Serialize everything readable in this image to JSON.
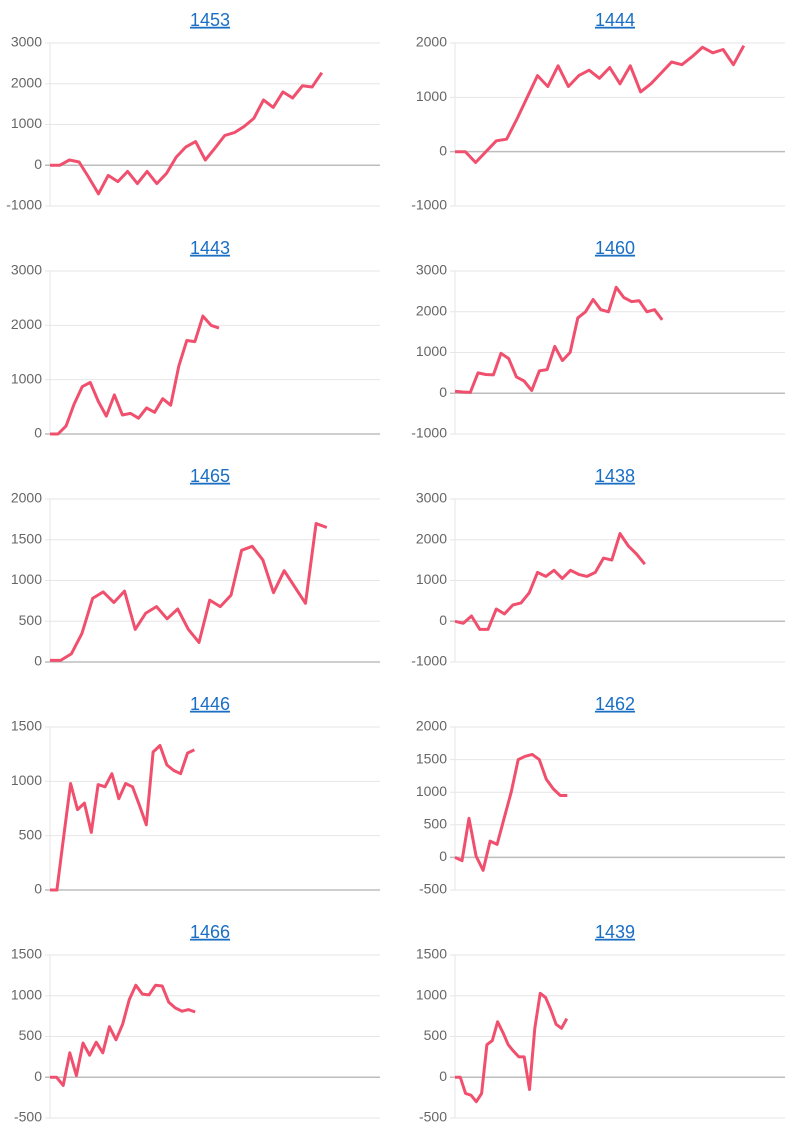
{
  "chart_data": [
    {
      "type": "line",
      "title": "1453",
      "color": "#f0506e",
      "grid": true,
      "xlim": [
        0,
        34
      ],
      "ylim": [
        -1000,
        3000
      ],
      "yticks": [
        -1000,
        0,
        1000,
        2000,
        3000
      ],
      "values": [
        0,
        0,
        130,
        80,
        -300,
        -700,
        -250,
        -400,
        -150,
        -450,
        -150,
        -450,
        -200,
        200,
        450,
        580,
        130,
        420,
        730,
        800,
        950,
        1150,
        1600,
        1420,
        1800,
        1650,
        1950,
        1920,
        2270
      ]
    },
    {
      "type": "line",
      "title": "1444",
      "color": "#f0506e",
      "grid": true,
      "xlim": [
        0,
        32
      ],
      "ylim": [
        -1000,
        2000
      ],
      "yticks": [
        -1000,
        0,
        1000,
        2000
      ],
      "values": [
        0,
        0,
        -200,
        0,
        200,
        230,
        600,
        1000,
        1400,
        1200,
        1580,
        1200,
        1400,
        1500,
        1350,
        1550,
        1250,
        1580,
        1100,
        1250,
        1450,
        1650,
        1600,
        1750,
        1920,
        1820,
        1880,
        1600,
        1950
      ]
    },
    {
      "type": "line",
      "title": "1443",
      "color": "#f0506e",
      "grid": true,
      "xlim": [
        0,
        41
      ],
      "ylim": [
        0,
        3000
      ],
      "yticks": [
        0,
        1000,
        2000,
        3000
      ],
      "values": [
        0,
        0,
        150,
        550,
        870,
        950,
        600,
        330,
        720,
        350,
        380,
        290,
        480,
        400,
        650,
        530,
        1250,
        1720,
        1700,
        2170,
        2000,
        1950
      ]
    },
    {
      "type": "line",
      "title": "1460",
      "color": "#f0506e",
      "grid": true,
      "xlim": [
        0,
        43
      ],
      "ylim": [
        -1000,
        3000
      ],
      "yticks": [
        -1000,
        0,
        1000,
        2000,
        3000
      ],
      "values": [
        50,
        30,
        20,
        500,
        460,
        450,
        980,
        850,
        400,
        300,
        70,
        550,
        580,
        1150,
        800,
        1000,
        1850,
        2000,
        2300,
        2050,
        2000,
        2600,
        2350,
        2250,
        2270,
        2000,
        2050,
        1800
      ]
    },
    {
      "type": "line",
      "title": "1465",
      "color": "#f0506e",
      "grid": true,
      "xlim": [
        0,
        31
      ],
      "ylim": [
        0,
        2000
      ],
      "yticks": [
        0,
        500,
        1000,
        1500,
        2000
      ],
      "values": [
        20,
        20,
        100,
        350,
        780,
        860,
        730,
        870,
        400,
        600,
        680,
        530,
        650,
        400,
        240,
        760,
        680,
        820,
        1370,
        1420,
        1250,
        850,
        1120,
        920,
        720,
        1700,
        1650
      ]
    },
    {
      "type": "line",
      "title": "1438",
      "color": "#f0506e",
      "grid": true,
      "xlim": [
        0,
        40
      ],
      "ylim": [
        -1000,
        3000
      ],
      "yticks": [
        -1000,
        0,
        1000,
        2000,
        3000
      ],
      "values": [
        0,
        -50,
        130,
        -200,
        -200,
        300,
        180,
        400,
        450,
        700,
        1200,
        1100,
        1250,
        1050,
        1250,
        1150,
        1100,
        1200,
        1550,
        1500,
        2150,
        1850,
        1650,
        1400
      ]
    },
    {
      "type": "line",
      "title": "1446",
      "color": "#f0506e",
      "grid": true,
      "xlim": [
        0,
        48
      ],
      "ylim": [
        0,
        1500
      ],
      "yticks": [
        0,
        500,
        1000,
        1500
      ],
      "values": [
        0,
        0,
        500,
        980,
        740,
        800,
        530,
        970,
        950,
        1070,
        840,
        980,
        950,
        780,
        600,
        1270,
        1330,
        1150,
        1100,
        1070,
        1260,
        1290
      ]
    },
    {
      "type": "line",
      "title": "1462",
      "color": "#f0506e",
      "grid": true,
      "xlim": [
        0,
        47
      ],
      "ylim": [
        -500,
        2000
      ],
      "yticks": [
        -500,
        0,
        500,
        1000,
        1500,
        2000
      ],
      "values": [
        0,
        -50,
        600,
        20,
        -200,
        250,
        200,
        600,
        1000,
        1500,
        1550,
        1580,
        1500,
        1200,
        1050,
        950,
        950
      ]
    },
    {
      "type": "line",
      "title": "1466",
      "color": "#f0506e",
      "grid": true,
      "xlim": [
        0,
        50
      ],
      "ylim": [
        -500,
        1500
      ],
      "yticks": [
        -500,
        0,
        500,
        1000,
        1500
      ],
      "values": [
        0,
        0,
        -100,
        300,
        20,
        420,
        270,
        430,
        300,
        620,
        460,
        650,
        950,
        1130,
        1020,
        1010,
        1130,
        1120,
        920,
        850,
        810,
        830,
        800
      ]
    },
    {
      "type": "line",
      "title": "1439",
      "color": "#f0506e",
      "grid": true,
      "xlim": [
        0,
        62
      ],
      "ylim": [
        -500,
        1500
      ],
      "yticks": [
        -500,
        0,
        500,
        1000,
        1500
      ],
      "values": [
        0,
        0,
        -200,
        -220,
        -300,
        -200,
        400,
        450,
        680,
        550,
        400,
        320,
        250,
        250,
        -150,
        600,
        1030,
        980,
        830,
        650,
        600,
        720
      ]
    }
  ]
}
